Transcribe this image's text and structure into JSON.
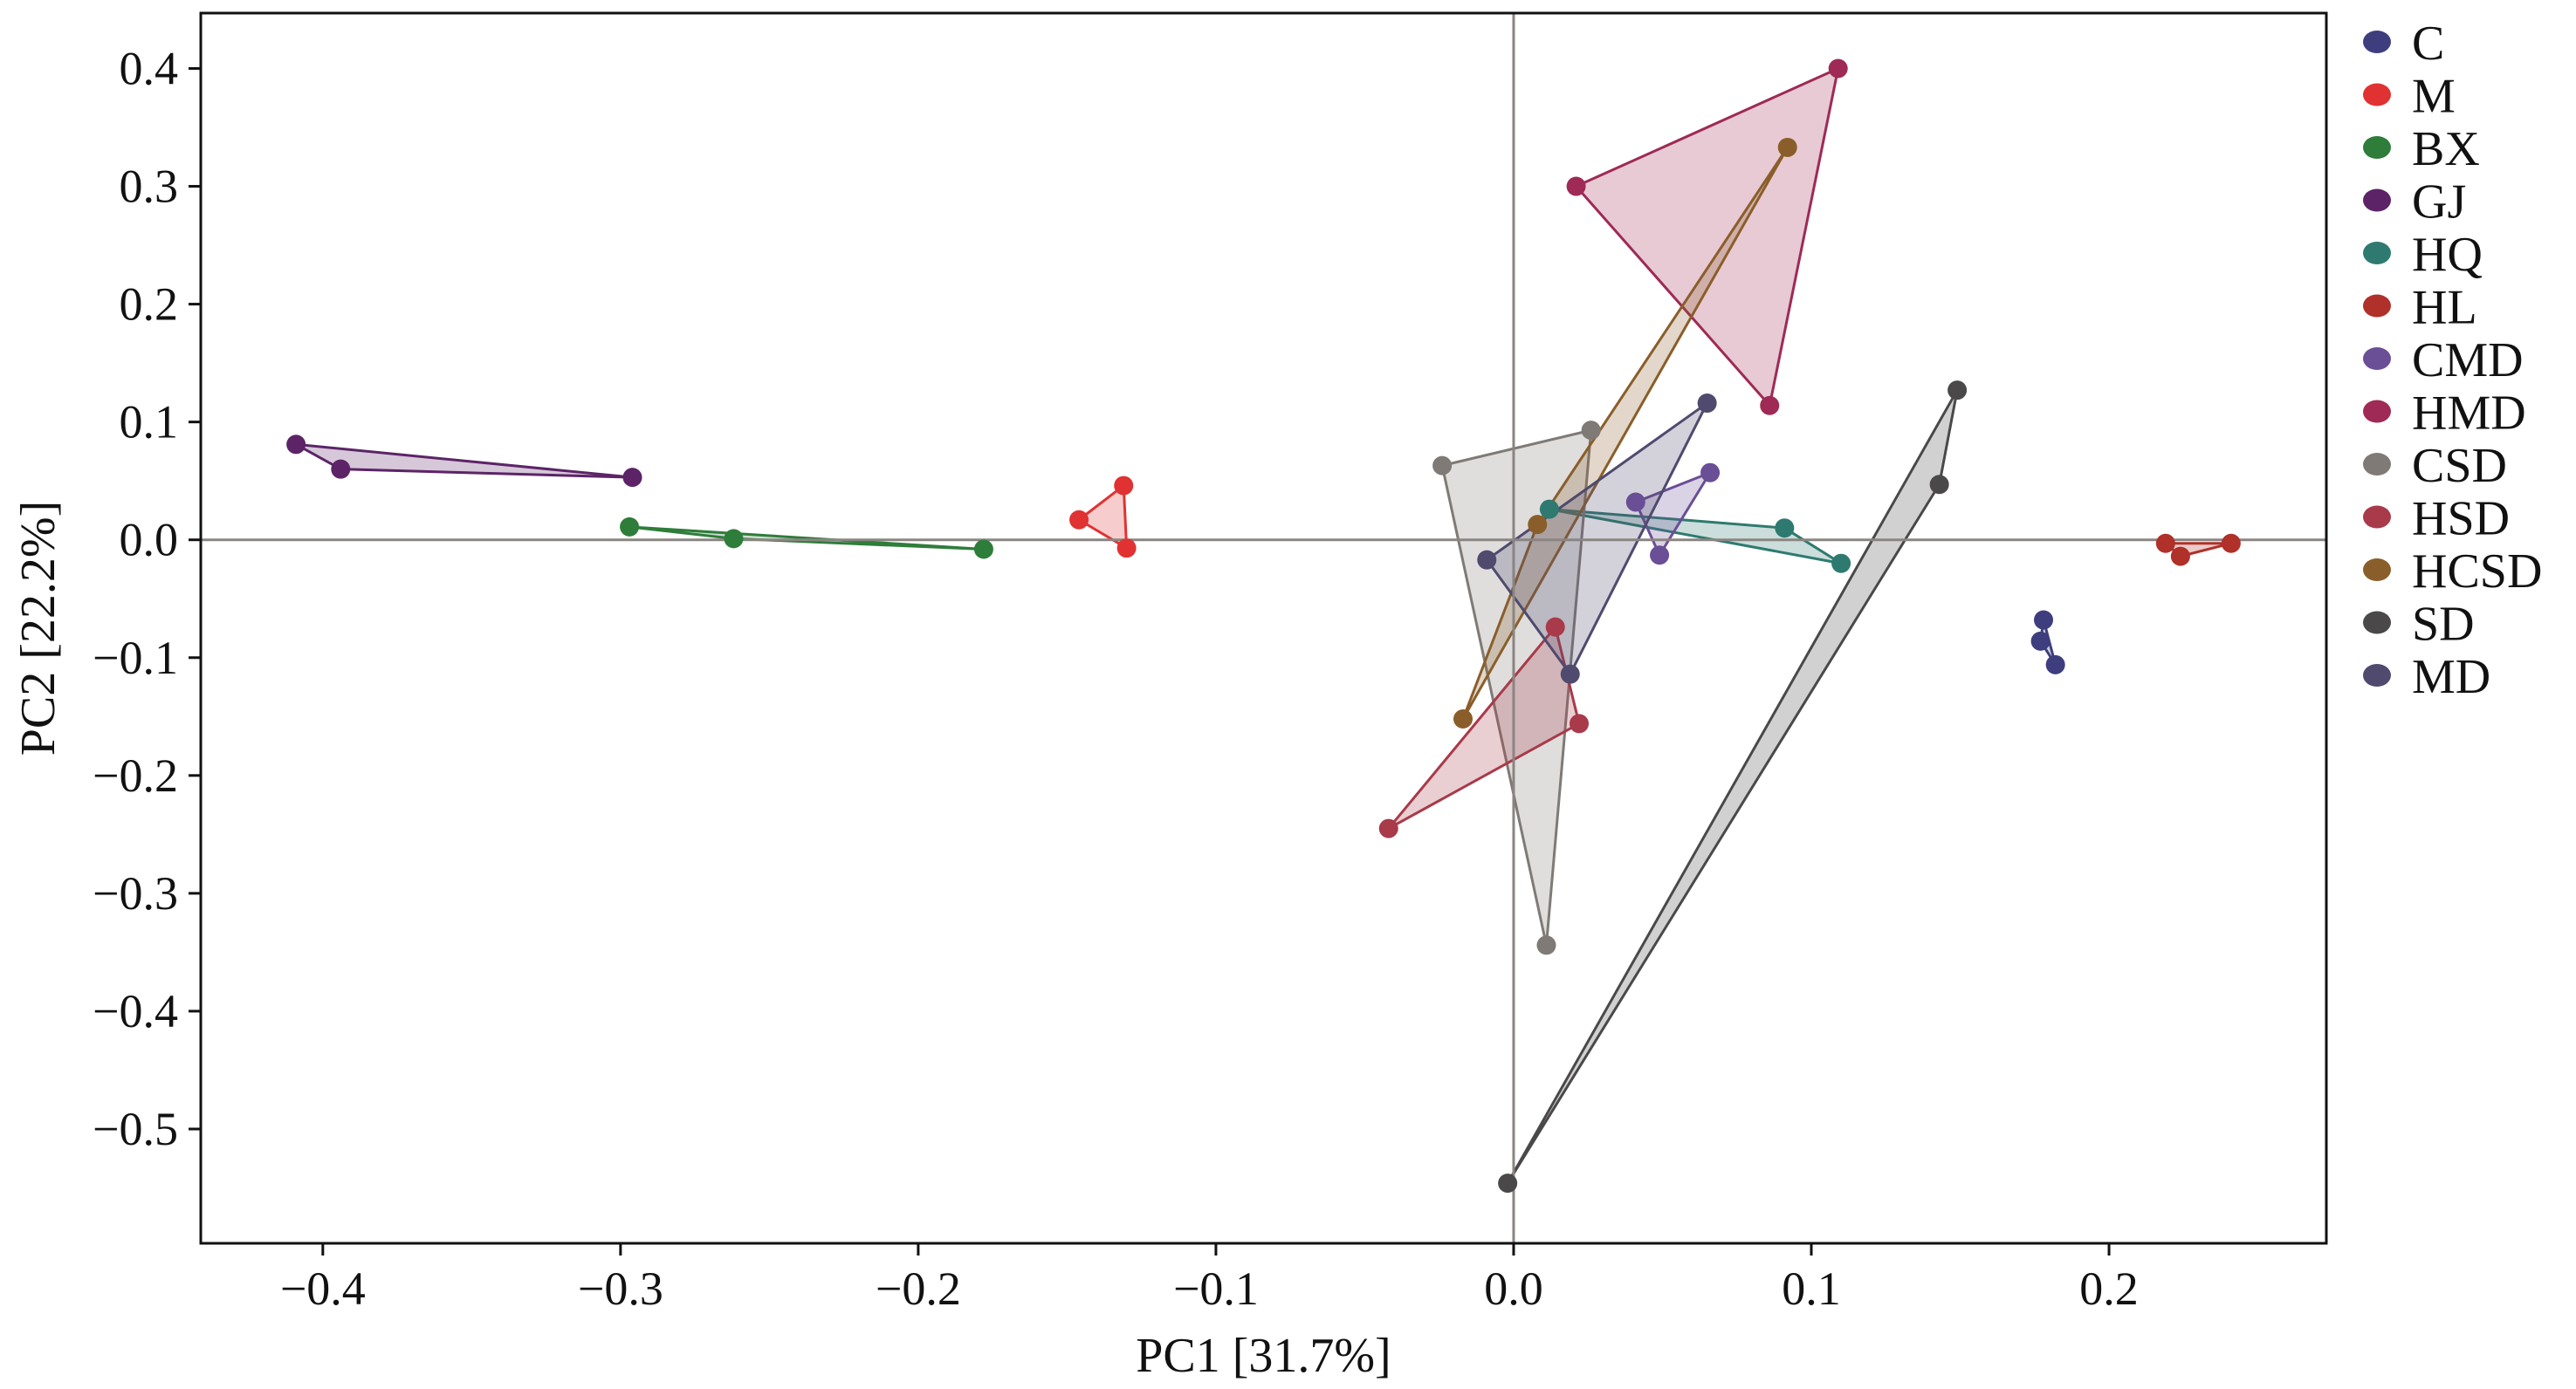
{
  "chart_data": {
    "type": "scatter",
    "title": "",
    "xlabel": "PC1 [31.7%]",
    "ylabel": "PC2 [22.2%]",
    "xlim": [
      -0.441,
      0.273
    ],
    "ylim": [
      -0.597,
      0.447
    ],
    "xticks": [
      -0.4,
      -0.3,
      -0.2,
      -0.1,
      0.0,
      0.1,
      0.2
    ],
    "xtick_labels": [
      "−0.4",
      "−0.3",
      "−0.2",
      "−0.1",
      "0.0",
      "0.1",
      "0.2"
    ],
    "yticks": [
      -0.5,
      -0.4,
      -0.3,
      -0.2,
      -0.1,
      0.0,
      0.1,
      0.2,
      0.3,
      0.4
    ],
    "ytick_labels": [
      "−0.5",
      "−0.4",
      "−0.3",
      "−0.2",
      "−0.1",
      "0.0",
      "0.1",
      "0.2",
      "0.3",
      "0.4"
    ],
    "reference_lines": {
      "x": 0,
      "y": 0
    },
    "grid": false,
    "legend_position": "right",
    "series": [
      {
        "name": "C",
        "color": "#3e3e7e",
        "points": [
          [
            0.182,
            -0.106
          ],
          [
            0.177,
            -0.086
          ],
          [
            0.178,
            -0.068
          ]
        ]
      },
      {
        "name": "M",
        "color": "#e03232",
        "points": [
          [
            -0.146,
            0.017
          ],
          [
            -0.131,
            0.046
          ],
          [
            -0.13,
            -0.007
          ]
        ]
      },
      {
        "name": "BX",
        "color": "#2e7d3a",
        "points": [
          [
            -0.297,
            0.011
          ],
          [
            -0.262,
            0.001
          ],
          [
            -0.178,
            -0.008
          ]
        ]
      },
      {
        "name": "GJ",
        "color": "#5c2467",
        "points": [
          [
            -0.409,
            0.081
          ],
          [
            -0.394,
            0.06
          ],
          [
            -0.296,
            0.053
          ]
        ]
      },
      {
        "name": "HQ",
        "color": "#2e7a70",
        "points": [
          [
            0.012,
            0.026
          ],
          [
            0.091,
            0.01
          ],
          [
            0.11,
            -0.02
          ]
        ]
      },
      {
        "name": "HL",
        "color": "#b0302a",
        "points": [
          [
            0.219,
            -0.003
          ],
          [
            0.224,
            -0.014
          ],
          [
            0.241,
            -0.003
          ]
        ]
      },
      {
        "name": "CMD",
        "color": "#6a4e96",
        "points": [
          [
            0.041,
            0.032
          ],
          [
            0.066,
            0.057
          ],
          [
            0.049,
            -0.013
          ]
        ]
      },
      {
        "name": "HMD",
        "color": "#9e2a55",
        "points": [
          [
            0.021,
            0.3
          ],
          [
            0.109,
            0.4
          ],
          [
            0.086,
            0.114
          ]
        ]
      },
      {
        "name": "CSD",
        "color": "#7f7a76",
        "points": [
          [
            -0.024,
            0.063
          ],
          [
            0.026,
            0.093
          ],
          [
            0.011,
            -0.344
          ]
        ]
      },
      {
        "name": "HSD",
        "color": "#a83a4a",
        "points": [
          [
            0.014,
            -0.074
          ],
          [
            0.022,
            -0.156
          ],
          [
            -0.042,
            -0.245
          ]
        ]
      },
      {
        "name": "HCSD",
        "color": "#8a5e2a",
        "points": [
          [
            0.008,
            0.013
          ],
          [
            0.092,
            0.333
          ],
          [
            -0.017,
            -0.152
          ]
        ]
      },
      {
        "name": "SD",
        "color": "#4a4848",
        "points": [
          [
            0.149,
            0.127
          ],
          [
            0.143,
            0.047
          ],
          [
            -0.002,
            -0.546
          ]
        ]
      },
      {
        "name": "MD",
        "color": "#4f4a6e",
        "points": [
          [
            -0.009,
            -0.017
          ],
          [
            0.065,
            0.116
          ],
          [
            0.019,
            -0.114
          ]
        ]
      }
    ]
  }
}
